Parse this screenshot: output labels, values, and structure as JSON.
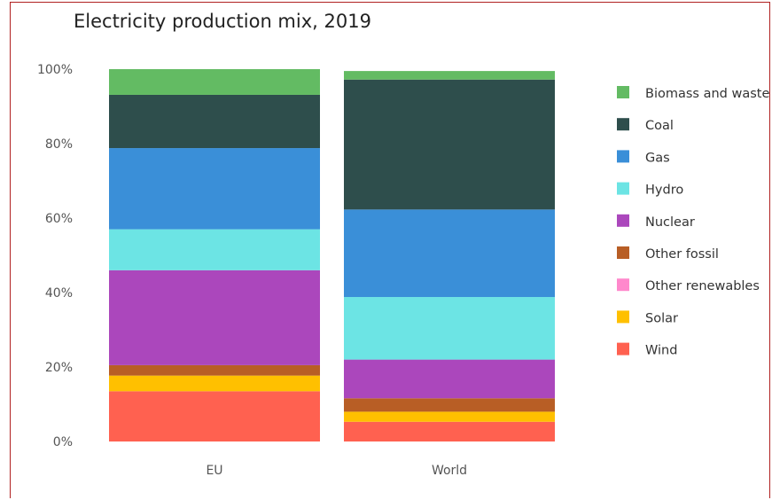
{
  "chart_data": {
    "type": "bar",
    "stacked": true,
    "title": "Electricity production mix, 2019",
    "categories": [
      "EU",
      "World"
    ],
    "yticks": [
      "0%",
      "20%",
      "40%",
      "60%",
      "80%",
      "100%"
    ],
    "ylim": [
      0,
      100
    ],
    "legend_position": "right",
    "series": [
      {
        "name": "Wind",
        "color": "#ff6150",
        "values": [
          13.5,
          5.3
        ]
      },
      {
        "name": "Solar",
        "color": "#ffc000",
        "values": [
          4.2,
          2.7
        ]
      },
      {
        "name": "Other renewables",
        "color": "#ff88cc",
        "values": [
          0,
          0
        ]
      },
      {
        "name": "Other fossil",
        "color": "#b85e25",
        "values": [
          2.8,
          3.6
        ]
      },
      {
        "name": "Nuclear",
        "color": "#ab47bc",
        "values": [
          25.5,
          10.4
        ]
      },
      {
        "name": "Hydro",
        "color": "#6ce4e4",
        "values": [
          11.0,
          16.8
        ]
      },
      {
        "name": "Gas",
        "color": "#3a8fd8",
        "values": [
          21.8,
          23.5
        ]
      },
      {
        "name": "Coal",
        "color": "#2e4e4c",
        "values": [
          14.3,
          34.9
        ]
      },
      {
        "name": "Biomass and waste",
        "color": "#63bb63",
        "values": [
          6.9,
          2.3
        ]
      }
    ],
    "legend_order": [
      "Biomass and waste",
      "Coal",
      "Gas",
      "Hydro",
      "Nuclear",
      "Other fossil",
      "Other renewables",
      "Solar",
      "Wind"
    ]
  }
}
